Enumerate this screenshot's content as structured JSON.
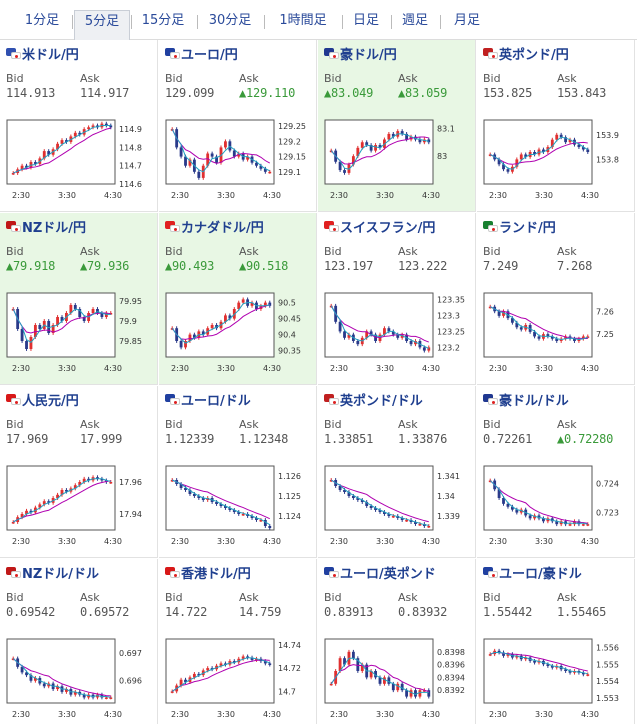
{
  "tabs": [
    {
      "label": "1分足",
      "active": false
    },
    {
      "label": "5分足",
      "active": true
    },
    {
      "label": "15分足",
      "active": false
    },
    {
      "label": "30分足",
      "active": false
    },
    {
      "label": "1時間足",
      "active": false
    },
    {
      "label": "日足",
      "active": false
    },
    {
      "label": "週足",
      "active": false
    },
    {
      "label": "月足",
      "active": false
    }
  ],
  "bid_label": "Bid",
  "ask_label": "Ask",
  "up_arrow": "▲",
  "colors": {
    "up_candle": "#e03030",
    "down_candle": "#2a3a8a",
    "ma_short": "#20a0c0",
    "ma_long": "#b000b0",
    "highlight_bg": "#e8f7e4",
    "up_text": "#3a9a3a"
  },
  "cells": [
    {
      "pair": "米ドル/円",
      "flag_icon": "usa-japan-flag-icon",
      "bid": "114.913",
      "ask": "114.917",
      "bid_up": false,
      "ask_up": false,
      "highlight": false,
      "chart_data": {
        "type": "candlestick",
        "x_ticks": [
          "2:30",
          "3:30",
          "4:30"
        ],
        "y_ticks": [
          "114.9",
          "114.8",
          "114.7",
          "114.6"
        ],
        "ylim": [
          114.6,
          114.95
        ],
        "close": [
          114.66,
          114.68,
          114.7,
          114.69,
          114.72,
          114.71,
          114.74,
          114.78,
          114.76,
          114.79,
          114.82,
          114.84,
          114.83,
          114.86,
          114.88,
          114.87,
          114.9,
          114.91,
          114.92,
          114.91,
          114.93,
          114.92,
          114.91
        ]
      }
    },
    {
      "pair": "ユーロ/円",
      "flag_icon": "eu-japan-flag-icon",
      "bid": "129.099",
      "ask": "129.110",
      "bid_up": false,
      "ask_up": true,
      "highlight": false,
      "chart_data": {
        "type": "candlestick",
        "x_ticks": [
          "2:30",
          "3:30",
          "4:30"
        ],
        "y_ticks": [
          "129.25",
          "129.2",
          "129.15",
          "129.1"
        ],
        "ylim": [
          129.06,
          129.27
        ],
        "close": [
          129.24,
          129.18,
          129.15,
          129.12,
          129.14,
          129.1,
          129.08,
          129.12,
          129.16,
          129.15,
          129.13,
          129.18,
          129.2,
          129.17,
          129.15,
          129.16,
          129.14,
          129.15,
          129.13,
          129.12,
          129.11,
          129.1,
          129.1
        ]
      }
    },
    {
      "pair": "豪ドル/円",
      "flag_icon": "australia-japan-flag-icon",
      "bid": "83.049",
      "ask": "83.059",
      "bid_up": true,
      "ask_up": true,
      "highlight": true,
      "chart_data": {
        "type": "candlestick",
        "x_ticks": [
          "2:30",
          "3:30",
          "4:30"
        ],
        "y_ticks": [
          "83.1",
          "83"
        ],
        "ylim": [
          82.9,
          83.13
        ],
        "close": [
          83.02,
          82.98,
          82.95,
          82.94,
          82.97,
          83.0,
          83.03,
          83.05,
          83.04,
          83.02,
          83.04,
          83.03,
          83.06,
          83.08,
          83.07,
          83.09,
          83.08,
          83.06,
          83.07,
          83.06,
          83.05,
          83.06,
          83.05
        ]
      }
    },
    {
      "pair": "英ポンド/円",
      "flag_icon": "uk-japan-flag-icon",
      "bid": "153.825",
      "ask": "153.843",
      "bid_up": false,
      "ask_up": false,
      "highlight": false,
      "chart_data": {
        "type": "candlestick",
        "x_ticks": [
          "2:30",
          "3:30",
          "4:30"
        ],
        "y_ticks": [
          "153.9",
          "153.8"
        ],
        "ylim": [
          153.7,
          153.96
        ],
        "close": [
          153.82,
          153.8,
          153.78,
          153.76,
          153.75,
          153.77,
          153.8,
          153.82,
          153.81,
          153.83,
          153.82,
          153.84,
          153.83,
          153.85,
          153.88,
          153.9,
          153.89,
          153.87,
          153.88,
          153.86,
          153.85,
          153.84,
          153.83
        ]
      }
    },
    {
      "pair": "NZドル/円",
      "flag_icon": "nz-japan-flag-icon",
      "bid": "79.918",
      "ask": "79.936",
      "bid_up": true,
      "ask_up": true,
      "highlight": true,
      "chart_data": {
        "type": "candlestick",
        "x_ticks": [
          "2:30",
          "3:30",
          "4:30"
        ],
        "y_ticks": [
          "79.95",
          "79.9",
          "79.85"
        ],
        "ylim": [
          79.81,
          79.97
        ],
        "close": [
          79.93,
          79.88,
          79.85,
          79.83,
          79.86,
          79.89,
          79.88,
          79.9,
          79.87,
          79.89,
          79.91,
          79.9,
          79.92,
          79.94,
          79.93,
          79.91,
          79.9,
          79.92,
          79.93,
          79.92,
          79.91,
          79.92,
          79.92
        ]
      }
    },
    {
      "pair": "カナダドル/円",
      "flag_icon": "canada-japan-flag-icon",
      "bid": "90.493",
      "ask": "90.518",
      "bid_up": true,
      "ask_up": true,
      "highlight": true,
      "chart_data": {
        "type": "candlestick",
        "x_ticks": [
          "2:30",
          "3:30",
          "4:30"
        ],
        "y_ticks": [
          "90.5",
          "90.45",
          "90.4",
          "90.35"
        ],
        "ylim": [
          90.33,
          90.53
        ],
        "close": [
          90.42,
          90.38,
          90.36,
          90.38,
          90.4,
          90.39,
          90.41,
          90.4,
          90.42,
          90.43,
          90.42,
          90.44,
          90.46,
          90.45,
          90.48,
          90.5,
          90.51,
          90.49,
          90.5,
          90.48,
          90.49,
          90.5,
          90.49
        ]
      }
    },
    {
      "pair": "スイスフラン/円",
      "flag_icon": "swiss-japan-flag-icon",
      "bid": "123.197",
      "ask": "123.222",
      "bid_up": false,
      "ask_up": false,
      "highlight": false,
      "chart_data": {
        "type": "candlestick",
        "x_ticks": [
          "2:30",
          "3:30",
          "4:30"
        ],
        "y_ticks": [
          "123.35",
          "123.3",
          "123.25",
          "123.2"
        ],
        "ylim": [
          123.17,
          123.37
        ],
        "close": [
          123.33,
          123.28,
          123.25,
          123.23,
          123.24,
          123.22,
          123.21,
          123.23,
          123.25,
          123.24,
          123.22,
          123.24,
          123.26,
          123.25,
          123.24,
          123.23,
          123.24,
          123.22,
          123.21,
          123.22,
          123.2,
          123.19,
          123.2
        ]
      }
    },
    {
      "pair": "ランド/円",
      "flag_icon": "south-africa-japan-flag-icon",
      "bid": "7.249",
      "ask": "7.268",
      "bid_up": false,
      "ask_up": false,
      "highlight": false,
      "chart_data": {
        "type": "candlestick",
        "x_ticks": [
          "2:30",
          "3:30",
          "4:30"
        ],
        "y_ticks": [
          "7.26",
          "7.25"
        ],
        "ylim": [
          7.24,
          7.268
        ],
        "close": [
          7.262,
          7.26,
          7.258,
          7.26,
          7.257,
          7.255,
          7.253,
          7.252,
          7.254,
          7.251,
          7.249,
          7.248,
          7.25,
          7.249,
          7.248,
          7.247,
          7.248,
          7.249,
          7.248,
          7.247,
          7.248,
          7.249,
          7.249
        ]
      }
    },
    {
      "pair": "人民元/円",
      "flag_icon": "china-japan-flag-icon",
      "bid": "17.969",
      "ask": "17.999",
      "bid_up": false,
      "ask_up": false,
      "highlight": false,
      "chart_data": {
        "type": "candlestick",
        "x_ticks": [
          "2:30",
          "3:30",
          "4:30"
        ],
        "y_ticks": [
          "17.96",
          "17.94"
        ],
        "ylim": [
          17.93,
          17.97
        ],
        "close": [
          17.935,
          17.938,
          17.94,
          17.942,
          17.941,
          17.944,
          17.946,
          17.948,
          17.947,
          17.95,
          17.952,
          17.955,
          17.954,
          17.956,
          17.958,
          17.96,
          17.962,
          17.961,
          17.963,
          17.962,
          17.961,
          17.96,
          17.96
        ]
      }
    },
    {
      "pair": "ユーロ/ドル",
      "flag_icon": "eu-usa-flag-icon",
      "bid": "1.12339",
      "ask": "1.12348",
      "bid_up": false,
      "ask_up": false,
      "highlight": false,
      "chart_data": {
        "type": "candlestick",
        "x_ticks": [
          "2:30",
          "3:30",
          "4:30"
        ],
        "y_ticks": [
          "1.126",
          "1.125",
          "1.124"
        ],
        "ylim": [
          1.1233,
          1.1265
        ],
        "close": [
          1.1258,
          1.1256,
          1.1254,
          1.1253,
          1.1251,
          1.125,
          1.1249,
          1.1248,
          1.1249,
          1.1247,
          1.1246,
          1.1245,
          1.1244,
          1.1243,
          1.1242,
          1.1241,
          1.1241,
          1.124,
          1.1239,
          1.1238,
          1.1238,
          1.1235,
          1.1234
        ]
      }
    },
    {
      "pair": "英ポンド/ドル",
      "flag_icon": "uk-usa-flag-icon",
      "bid": "1.33851",
      "ask": "1.33876",
      "bid_up": false,
      "ask_up": false,
      "highlight": false,
      "chart_data": {
        "type": "candlestick",
        "x_ticks": [
          "2:30",
          "3:30",
          "4:30"
        ],
        "y_ticks": [
          "1.341",
          "1.34",
          "1.339"
        ],
        "ylim": [
          1.3383,
          1.3415
        ],
        "close": [
          1.3408,
          1.3405,
          1.3403,
          1.3402,
          1.34,
          1.3399,
          1.3398,
          1.3397,
          1.3395,
          1.3394,
          1.3393,
          1.3392,
          1.3391,
          1.339,
          1.339,
          1.3389,
          1.3388,
          1.3388,
          1.3387,
          1.3386,
          1.3386,
          1.3385,
          1.3385
        ]
      }
    },
    {
      "pair": "豪ドル/ドル",
      "flag_icon": "australia-usa-flag-icon",
      "bid": "0.72261",
      "ask": "0.72280",
      "bid_up": false,
      "ask_up": true,
      "highlight": false,
      "chart_data": {
        "type": "candlestick",
        "x_ticks": [
          "2:30",
          "3:30",
          "4:30"
        ],
        "y_ticks": [
          "0.724",
          "0.723"
        ],
        "ylim": [
          0.7224,
          0.7246
        ],
        "close": [
          0.7241,
          0.7238,
          0.7235,
          0.7233,
          0.7232,
          0.7231,
          0.723,
          0.7231,
          0.7229,
          0.7228,
          0.7229,
          0.7228,
          0.7227,
          0.7228,
          0.7227,
          0.7226,
          0.7227,
          0.7226,
          0.7226,
          0.7227,
          0.7226,
          0.7226,
          0.7226
        ]
      }
    },
    {
      "pair": "NZドル/ドル",
      "flag_icon": "nz-usa-flag-icon",
      "bid": "0.69542",
      "ask": "0.69572",
      "bid_up": false,
      "ask_up": false,
      "highlight": false,
      "chart_data": {
        "type": "candlestick",
        "x_ticks": [
          "2:30",
          "3:30",
          "4:30"
        ],
        "y_ticks": [
          "0.697",
          "0.696"
        ],
        "ylim": [
          0.6952,
          0.6975
        ],
        "close": [
          0.6968,
          0.6965,
          0.6963,
          0.6962,
          0.696,
          0.6961,
          0.6959,
          0.6958,
          0.6959,
          0.6957,
          0.6958,
          0.6956,
          0.6957,
          0.6955,
          0.6956,
          0.6955,
          0.6954,
          0.6955,
          0.6954,
          0.6955,
          0.6954,
          0.6954,
          0.6954
        ]
      }
    },
    {
      "pair": "香港ドル/円",
      "flag_icon": "hongkong-japan-flag-icon",
      "bid": "14.722",
      "ask": "14.759",
      "bid_up": false,
      "ask_up": false,
      "highlight": false,
      "chart_data": {
        "type": "candlestick",
        "x_ticks": [
          "2:30",
          "3:30",
          "4:30"
        ],
        "y_ticks": [
          "14.74",
          "14.72",
          "14.7"
        ],
        "ylim": [
          14.69,
          14.745
        ],
        "close": [
          14.7,
          14.705,
          14.71,
          14.708,
          14.712,
          14.715,
          14.714,
          14.718,
          14.72,
          14.719,
          14.722,
          14.724,
          14.723,
          14.726,
          14.725,
          14.728,
          14.73,
          14.729,
          14.727,
          14.728,
          14.726,
          14.724,
          14.723
        ]
      }
    },
    {
      "pair": "ユーロ/英ポンド",
      "flag_icon": "eu-uk-flag-icon",
      "bid": "0.83913",
      "ask": "0.83932",
      "bid_up": false,
      "ask_up": false,
      "highlight": false,
      "chart_data": {
        "type": "candlestick",
        "x_ticks": [
          "2:30",
          "3:30",
          "4:30"
        ],
        "y_ticks": [
          "0.8398",
          "0.8396",
          "0.8394",
          "0.8392"
        ],
        "ylim": [
          0.839,
          0.84
        ],
        "close": [
          0.8393,
          0.8395,
          0.8397,
          0.8396,
          0.8398,
          0.8397,
          0.8395,
          0.8396,
          0.8394,
          0.8395,
          0.8394,
          0.8393,
          0.8394,
          0.8393,
          0.8392,
          0.8393,
          0.8392,
          0.8391,
          0.8392,
          0.8391,
          0.8392,
          0.8392,
          0.8391
        ]
      }
    },
    {
      "pair": "ユーロ/豪ドル",
      "flag_icon": "eu-australia-flag-icon",
      "bid": "1.55442",
      "ask": "1.55465",
      "bid_up": false,
      "ask_up": false,
      "highlight": false,
      "chart_data": {
        "type": "candlestick",
        "x_ticks": [
          "2:30",
          "3:30",
          "4:30"
        ],
        "y_ticks": [
          "1.556",
          "1.555",
          "1.554",
          "1.553"
        ],
        "ylim": [
          1.5527,
          1.5565
        ],
        "close": [
          1.5556,
          1.5558,
          1.5557,
          1.5555,
          1.5556,
          1.5554,
          1.5555,
          1.5553,
          1.5554,
          1.5552,
          1.5551,
          1.5552,
          1.555,
          1.5549,
          1.5548,
          1.5549,
          1.5547,
          1.5546,
          1.5545,
          1.5546,
          1.5545,
          1.5544,
          1.5544
        ]
      }
    }
  ]
}
